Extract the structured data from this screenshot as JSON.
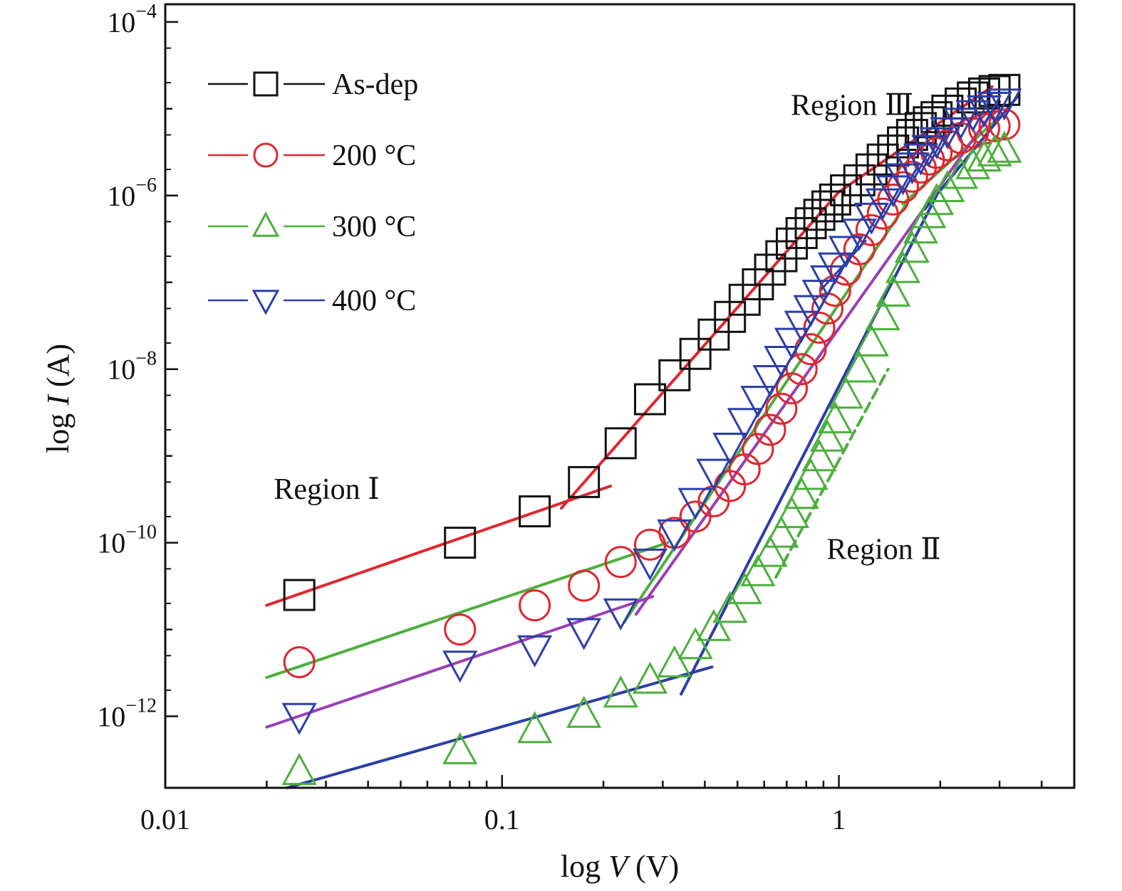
{
  "chart_data": {
    "type": "scatter",
    "xlabel": {
      "prefix": "log ",
      "var": "V",
      "suffix": " (V)"
    },
    "ylabel": {
      "prefix": "log ",
      "var": "I",
      "suffix": " (A)"
    },
    "x_scale": "log",
    "y_scale": "log",
    "xlim": [
      0.01,
      5
    ],
    "ylim": [
      1.5e-13,
      0.00016
    ],
    "x_ticks": [
      {
        "value": 0.01,
        "label": "0.01"
      },
      {
        "value": 0.1,
        "label": "0.1"
      },
      {
        "value": 1,
        "label": "1"
      }
    ],
    "y_ticks": [
      {
        "value": 0.0001,
        "base": "10",
        "exp": "−4"
      },
      {
        "value": 1e-06,
        "base": "10",
        "exp": "−6"
      },
      {
        "value": 1e-08,
        "base": "10",
        "exp": "−8"
      },
      {
        "value": 1e-10,
        "base": "10",
        "exp": "−10"
      },
      {
        "value": 1e-12,
        "base": "10",
        "exp": "−12"
      }
    ],
    "legend_position": "top-left",
    "annotations": [
      {
        "text": "Region Ⅰ",
        "x": 0.021,
        "y": 3.2e-10
      },
      {
        "text": "Region Ⅱ",
        "x": 0.92,
        "y": 6.5e-11
      },
      {
        "text": "Region Ⅲ",
        "x": 0.72,
        "y": 8.5e-06
      }
    ],
    "series": [
      {
        "name": "As-dep",
        "marker": "square",
        "color": "#111111",
        "x": [
          0.025,
          0.075,
          0.125,
          0.175,
          0.225,
          0.275,
          0.325,
          0.375,
          0.425,
          0.475,
          0.525,
          0.575,
          0.625,
          0.675,
          0.725,
          0.775,
          0.825,
          0.875,
          0.925,
          0.975,
          1.05,
          1.15,
          1.25,
          1.35,
          1.45,
          1.55,
          1.65,
          1.75,
          1.85,
          1.95,
          2.1,
          2.3,
          2.5,
          2.7,
          2.9,
          3.1
        ],
        "y": [
          2.5e-11,
          1e-10,
          2.3e-10,
          5e-10,
          1.4e-09,
          4.5e-09,
          8.5e-09,
          1.5e-08,
          2.5e-08,
          4e-08,
          6.3e-08,
          9.5e-08,
          1.4e-07,
          2e-07,
          2.8e-07,
          3.7e-07,
          4.8e-07,
          6e-07,
          7.5e-07,
          9e-07,
          1.15e-06,
          1.5e-06,
          2e-06,
          2.6e-06,
          3.3e-06,
          4.1e-06,
          5e-06,
          6e-06,
          7e-06,
          8e-06,
          9.5e-06,
          1.15e-05,
          1.35e-05,
          1.5e-05,
          1.6e-05,
          1.65e-05
        ]
      },
      {
        "name": "200 °C",
        "marker": "circle",
        "color": "#e0262e",
        "x": [
          0.025,
          0.075,
          0.125,
          0.175,
          0.225,
          0.275,
          0.325,
          0.375,
          0.425,
          0.475,
          0.525,
          0.575,
          0.625,
          0.675,
          0.725,
          0.775,
          0.825,
          0.875,
          0.925,
          0.975,
          1.05,
          1.15,
          1.25,
          1.35,
          1.45,
          1.55,
          1.65,
          1.75,
          1.85,
          1.95,
          2.1,
          2.3,
          2.5,
          2.7,
          2.9,
          3.1
        ],
        "y": [
          4.2e-12,
          1e-11,
          1.9e-11,
          3.2e-11,
          6e-11,
          9.5e-11,
          1.3e-10,
          2e-10,
          3e-10,
          4.5e-10,
          7e-10,
          1.2e-09,
          2e-09,
          3.5e-09,
          6e-09,
          1e-08,
          1.7e-08,
          3e-08,
          5e-08,
          8e-08,
          1.4e-07,
          2.4e-07,
          4e-07,
          6.2e-07,
          9e-07,
          1.25e-06,
          1.65e-06,
          2.1e-06,
          2.6e-06,
          3.1e-06,
          3.8e-06,
          4.6e-06,
          5.3e-06,
          5.9e-06,
          6.3e-06,
          6.6e-06
        ]
      },
      {
        "name": "300 °C",
        "marker": "triangle-up",
        "color": "#4caf3c",
        "x": [
          0.025,
          0.075,
          0.125,
          0.175,
          0.225,
          0.275,
          0.325,
          0.375,
          0.425,
          0.475,
          0.525,
          0.575,
          0.625,
          0.675,
          0.725,
          0.775,
          0.825,
          0.875,
          0.925,
          0.975,
          1.05,
          1.15,
          1.25,
          1.35,
          1.45,
          1.55,
          1.65,
          1.75,
          1.85,
          1.95,
          2.1,
          2.3,
          2.5,
          2.7,
          2.9,
          3.1
        ],
        "y": [
          2.3e-13,
          4e-13,
          7e-13,
          1.05e-12,
          1.8e-12,
          2.6e-12,
          4e-12,
          6.5e-12,
          1.05e-11,
          1.7e-11,
          2.8e-11,
          4.5e-11,
          7.5e-11,
          1.25e-10,
          2.1e-10,
          3.5e-10,
          5.8e-10,
          9.5e-10,
          1.6e-09,
          2.6e-09,
          5e-09,
          1e-08,
          2e-08,
          4e-08,
          7.5e-08,
          1.4e-07,
          2.4e-07,
          4e-07,
          6e-07,
          8.5e-07,
          1.2e-06,
          1.7e-06,
          2.2e-06,
          2.7e-06,
          3.1e-06,
          3.4e-06
        ]
      },
      {
        "name": "400  °C",
        "marker": "triangle-down",
        "color": "#2b3ea8",
        "x": [
          0.025,
          0.075,
          0.125,
          0.175,
          0.225,
          0.275,
          0.325,
          0.375,
          0.425,
          0.475,
          0.525,
          0.575,
          0.625,
          0.675,
          0.725,
          0.775,
          0.825,
          0.875,
          0.925,
          0.975,
          1.05,
          1.15,
          1.25,
          1.35,
          1.45,
          1.55,
          1.65,
          1.75,
          1.85,
          1.95,
          2.1,
          2.3,
          2.5,
          2.7,
          2.9,
          3.1
        ],
        "y": [
          1e-12,
          4e-12,
          6e-12,
          9.5e-12,
          1.6e-11,
          6e-11,
          1.3e-10,
          3e-10,
          6.5e-10,
          1.3e-09,
          2.5e-09,
          4.5e-09,
          7.8e-09,
          1.3e-08,
          2.1e-08,
          3.3e-08,
          5e-08,
          7.5e-08,
          1.1e-07,
          1.55e-07,
          2.4e-07,
          3.8e-07,
          5.8e-07,
          8.5e-07,
          1.2e-06,
          1.65e-06,
          2.2e-06,
          2.8e-06,
          3.5e-06,
          4.3e-06,
          5.6e-06,
          7.2e-06,
          8.8e-06,
          1e-05,
          1.1e-05,
          1.2e-05
        ]
      }
    ],
    "fit_lines": [
      {
        "color": "#e0262e",
        "width": 4,
        "from": [
          0.02,
          1.9e-11
        ],
        "to": [
          0.21,
          4.5e-10
        ]
      },
      {
        "color": "#e0262e",
        "width": 4,
        "from": [
          0.15,
          2.5e-10
        ],
        "to": [
          1.0,
          1.1e-06
        ]
      },
      {
        "color": "#e0262e",
        "width": 4,
        "from": [
          1.0,
          1.1e-06
        ],
        "to": [
          2.85,
          1.8e-05
        ]
      },
      {
        "color": "#4caf3c",
        "width": 4,
        "from": [
          0.02,
          2.8e-12
        ],
        "to": [
          0.31,
          1e-10
        ]
      },
      {
        "color": "#4caf3c",
        "width": 4,
        "from": [
          0.23,
          1.2e-11
        ],
        "to": [
          1.65,
          1e-06
        ]
      },
      {
        "color": "#4caf3c",
        "width": 4,
        "from": [
          1.55,
          8e-07
        ],
        "to": [
          3.1,
          9e-06
        ]
      },
      {
        "color": "#4caf3c",
        "width": 4,
        "dash": "14,8",
        "from": [
          0.65,
          4e-11
        ],
        "to": [
          1.4,
          1e-08
        ]
      },
      {
        "color": "#9b3fb5",
        "width": 4,
        "from": [
          0.02,
          7.5e-13
        ],
        "to": [
          0.28,
          2.4e-11
        ]
      },
      {
        "color": "#9b3fb5",
        "width": 4,
        "from": [
          0.25,
          1.5e-11
        ],
        "to": [
          3.0,
          1.2e-05
        ]
      },
      {
        "color": "#2b3ea8",
        "width": 4,
        "from": [
          0.023,
          1.5e-13
        ],
        "to": [
          0.42,
          3.7e-12
        ]
      },
      {
        "color": "#2b3ea8",
        "width": 4,
        "from": [
          0.34,
          1.8e-12
        ],
        "to": [
          1.95,
          1e-06
        ]
      },
      {
        "color": "#2b3ea8",
        "width": 4,
        "from": [
          1.8,
          7e-07
        ],
        "to": [
          3.4,
          1.4e-05
        ]
      },
      {
        "color": "#2b3ea8",
        "width": 3,
        "from": [
          0.88,
          8e-08
        ],
        "to": [
          1.2,
          3e-07
        ]
      }
    ]
  }
}
